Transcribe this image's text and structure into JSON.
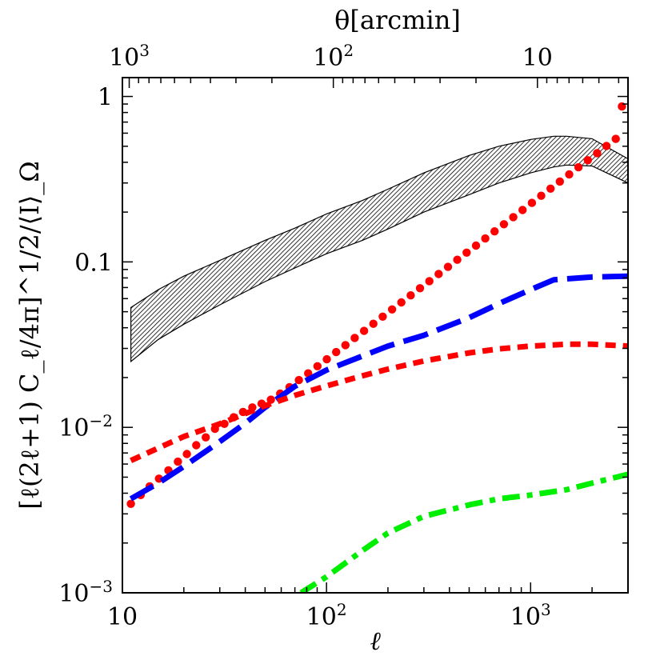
{
  "chart_data": {
    "type": "line",
    "xscale": "log",
    "yscale": "log",
    "xlim": [
      10,
      3000
    ],
    "ylim": [
      0.001,
      1.3
    ],
    "xlabel": "ℓ",
    "ylabel": "[ℓ(2ℓ+1) C_ℓ/4π]^1/2/⟨I⟩_Ω",
    "top_axis_label": "θ[arcmin]",
    "x_ticks": [
      {
        "value": 10,
        "base": "10",
        "exp": ""
      },
      {
        "value": 100,
        "base": "10",
        "exp": "2"
      },
      {
        "value": 1000,
        "base": "10",
        "exp": "3"
      }
    ],
    "y_ticks": [
      {
        "value": 0.001,
        "base": "10",
        "exp": "−3"
      },
      {
        "value": 0.01,
        "base": "10",
        "exp": "−2"
      },
      {
        "value": 0.1,
        "base": "0.1",
        "exp": ""
      },
      {
        "value": 1,
        "base": "1",
        "exp": ""
      }
    ],
    "top_ticks": [
      {
        "theta_arcmin": 1000,
        "base": "10",
        "exp": "3"
      },
      {
        "theta_arcmin": 100,
        "base": "10",
        "exp": "2"
      },
      {
        "theta_arcmin": 10,
        "base": "10",
        "exp": ""
      }
    ],
    "band": {
      "x": [
        11,
        15,
        20,
        30,
        50,
        70,
        100,
        150,
        200,
        300,
        500,
        700,
        1000,
        1300,
        1500,
        2000,
        3000
      ],
      "upper": [
        0.053,
        0.068,
        0.082,
        0.102,
        0.135,
        0.16,
        0.195,
        0.235,
        0.275,
        0.345,
        0.44,
        0.5,
        0.55,
        0.575,
        0.575,
        0.555,
        0.42
      ],
      "lower": [
        0.025,
        0.034,
        0.042,
        0.055,
        0.076,
        0.092,
        0.112,
        0.135,
        0.158,
        0.2,
        0.255,
        0.3,
        0.345,
        0.375,
        0.385,
        0.38,
        0.3
      ],
      "fill": "#000000"
    },
    "series": [
      {
        "style": "dotted-circles",
        "color": "#ff0000",
        "x": [
          11,
          12.3,
          13.6,
          15.1,
          16.8,
          18.7,
          20.7,
          23.0,
          25.6,
          28.4,
          31.6,
          35.1,
          39.0,
          43.3,
          48.1,
          53.4,
          59.3,
          65.9,
          73.2,
          81.3,
          90.3,
          100.3,
          111.5,
          123.8,
          137.5,
          152.8,
          169.7,
          188.6,
          209.5,
          232.7,
          258.5,
          287.2,
          319.0,
          354.4,
          393.7,
          437.4,
          485.9,
          539.8,
          599.6,
          666.1,
          739.9,
          822.0,
          913.1,
          1014.4,
          1126.9,
          1251.9,
          1390.7,
          1544.9,
          1716.2,
          1906.5,
          2117.9,
          2352.8,
          2613.6,
          2800
        ],
        "values": [
          0.00345,
          0.0039,
          0.0044,
          0.0049,
          0.0055,
          0.0062,
          0.0069,
          0.0078,
          0.0087,
          0.0098,
          0.0105,
          0.0115,
          0.0124,
          0.0132,
          0.0139,
          0.0147,
          0.016,
          0.0175,
          0.0193,
          0.0212,
          0.0234,
          0.0258,
          0.0285,
          0.0314,
          0.0347,
          0.0383,
          0.0423,
          0.0467,
          0.0516,
          0.0569,
          0.0628,
          0.0693,
          0.0765,
          0.0845,
          0.0933,
          0.103,
          0.1137,
          0.1255,
          0.1386,
          0.153,
          0.1689,
          0.1865,
          0.2059,
          0.2273,
          0.251,
          0.2771,
          0.306,
          0.3378,
          0.373,
          0.4118,
          0.4547,
          0.502,
          0.5543,
          0.87
        ]
      },
      {
        "style": "long-dash",
        "color": "#0000ff",
        "x": [
          11,
          15,
          20,
          30,
          40,
          50,
          70,
          100,
          150,
          200,
          300,
          500,
          700,
          1000,
          1300,
          2000,
          3000
        ],
        "values": [
          0.0037,
          0.0046,
          0.0058,
          0.0082,
          0.0106,
          0.0132,
          0.0177,
          0.0222,
          0.027,
          0.031,
          0.036,
          0.046,
          0.056,
          0.068,
          0.078,
          0.081,
          0.082
        ]
      },
      {
        "style": "short-dash",
        "color": "#ff0000",
        "x": [
          11,
          15,
          20,
          30,
          50,
          70,
          100,
          150,
          200,
          300,
          500,
          700,
          1000,
          1500,
          2000,
          3000
        ],
        "values": [
          0.0063,
          0.0075,
          0.0088,
          0.0105,
          0.0135,
          0.0156,
          0.0178,
          0.0205,
          0.0225,
          0.0252,
          0.0282,
          0.0298,
          0.031,
          0.0318,
          0.0318,
          0.031
        ]
      },
      {
        "style": "dash-dot",
        "color": "#00ee00",
        "x": [
          75,
          100,
          150,
          200,
          300,
          500,
          700,
          1000,
          1500,
          2000,
          3000
        ],
        "values": [
          0.001,
          0.00125,
          0.0018,
          0.0023,
          0.0029,
          0.0034,
          0.0037,
          0.0039,
          0.0042,
          0.0046,
          0.0052
        ]
      }
    ]
  }
}
